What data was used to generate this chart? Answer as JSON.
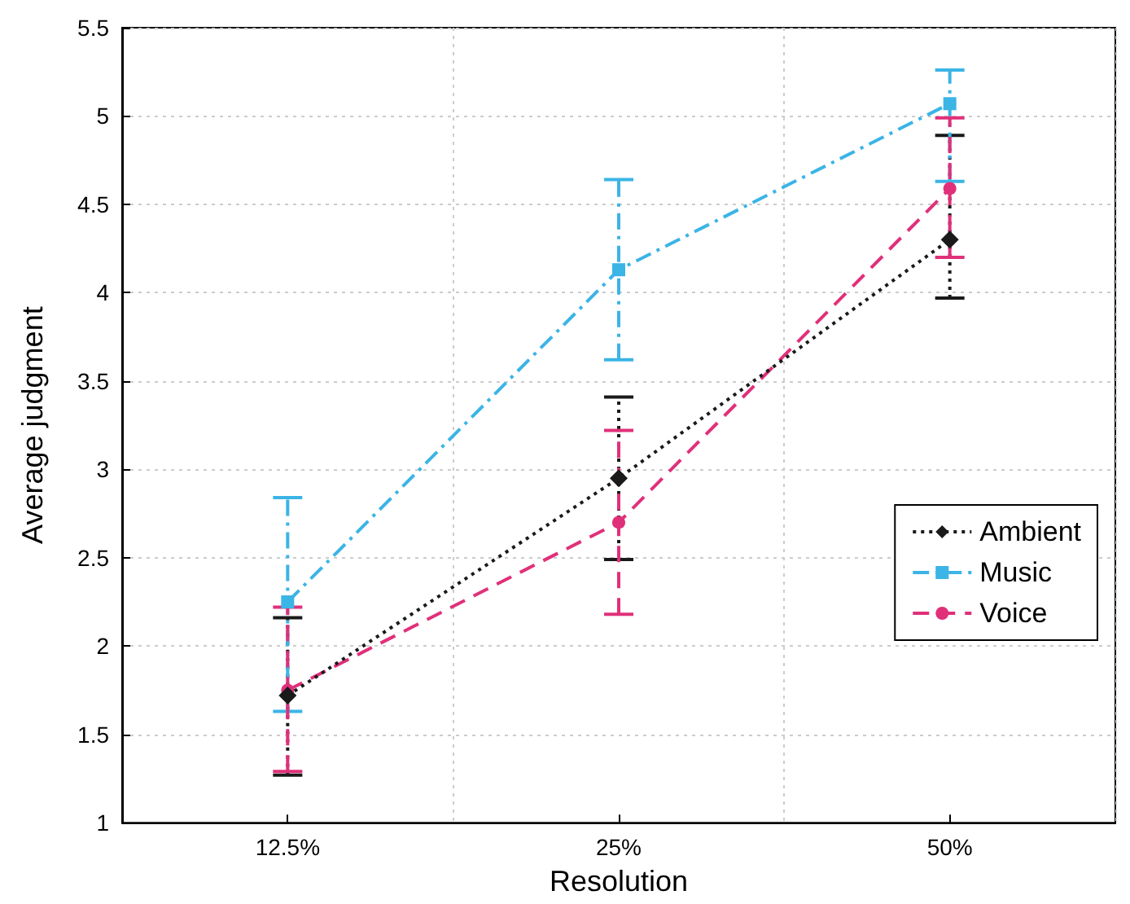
{
  "chart_data": {
    "type": "line",
    "xlabel": "Resolution",
    "ylabel": "Average judgment",
    "categories": [
      "12.5%",
      "25%",
      "50%"
    ],
    "series": [
      {
        "name": "Ambient",
        "color": "#1a1a1a",
        "values": [
          1.72,
          2.95,
          4.3
        ],
        "errors": [
          [
            1.27,
            2.16
          ],
          [
            2.49,
            3.41
          ],
          [
            3.97,
            4.89
          ]
        ],
        "marker": "diamond",
        "line_style": "dotted"
      },
      {
        "name": "Music",
        "color": "#3bb4e6",
        "values": [
          2.25,
          4.13,
          5.07
        ],
        "errors": [
          [
            1.63,
            2.84
          ],
          [
            3.62,
            4.64
          ],
          [
            4.63,
            5.26
          ]
        ],
        "marker": "square",
        "line_style": "dashdot"
      },
      {
        "name": "Voice",
        "color": "#e0307a",
        "values": [
          1.75,
          2.7,
          4.59
        ],
        "errors": [
          [
            1.29,
            2.22
          ],
          [
            2.18,
            3.22
          ],
          [
            4.2,
            4.99
          ]
        ],
        "marker": "circle",
        "line_style": "dashed"
      }
    ],
    "ylim": [
      1,
      5.5
    ],
    "yticks": [
      1,
      1.5,
      2,
      2.5,
      3,
      3.5,
      4,
      4.5,
      5,
      5.5
    ],
    "grid": true,
    "legend": "right"
  }
}
